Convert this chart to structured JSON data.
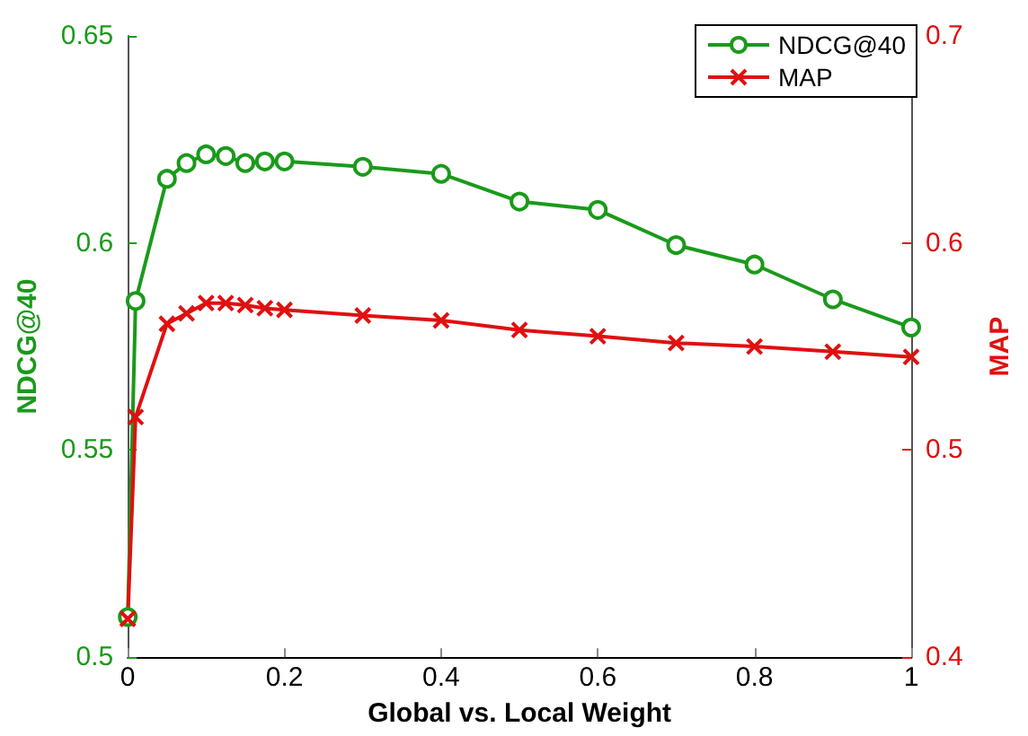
{
  "chart_data": {
    "type": "line",
    "xlabel": "Global vs. Local Weight",
    "ylabel": "NDCG@40",
    "y2label": "MAP",
    "xlim": [
      0,
      1
    ],
    "xticks": [
      0,
      0.2,
      0.4,
      0.6,
      0.8,
      1
    ],
    "ylim": [
      0.5,
      0.65
    ],
    "yticks": [
      0.5,
      0.55,
      0.6,
      0.65
    ],
    "y2lim": [
      0.4,
      0.7
    ],
    "y2ticks": [
      0.4,
      0.5,
      0.6,
      0.7
    ],
    "x": [
      0,
      0.01,
      0.05,
      0.075,
      0.1,
      0.125,
      0.15,
      0.175,
      0.2,
      0.3,
      0.4,
      0.5,
      0.6,
      0.7,
      0.8,
      0.9,
      1
    ],
    "series": [
      {
        "name": "NDCG@40",
        "color": "#1a9a1a",
        "marker": "circle",
        "values": [
          0.5097,
          0.586,
          0.6155,
          0.6193,
          0.6214,
          0.621,
          0.6193,
          0.6197,
          0.6197,
          0.6184,
          0.6167,
          0.61,
          0.608,
          0.5995,
          0.5948,
          0.5864,
          0.5796
        ]
      },
      {
        "name": "MAP",
        "color": "#e01010",
        "marker": "cross",
        "axis": "y2",
        "values": [
          0.4185,
          0.516,
          0.561,
          0.566,
          0.571,
          0.571,
          0.57,
          0.5685,
          0.5677,
          0.565,
          0.5626,
          0.558,
          0.555,
          0.5517,
          0.55,
          0.5475,
          0.545
        ]
      }
    ],
    "legend": "top right",
    "grid": false,
    "line_style": "solid"
  }
}
